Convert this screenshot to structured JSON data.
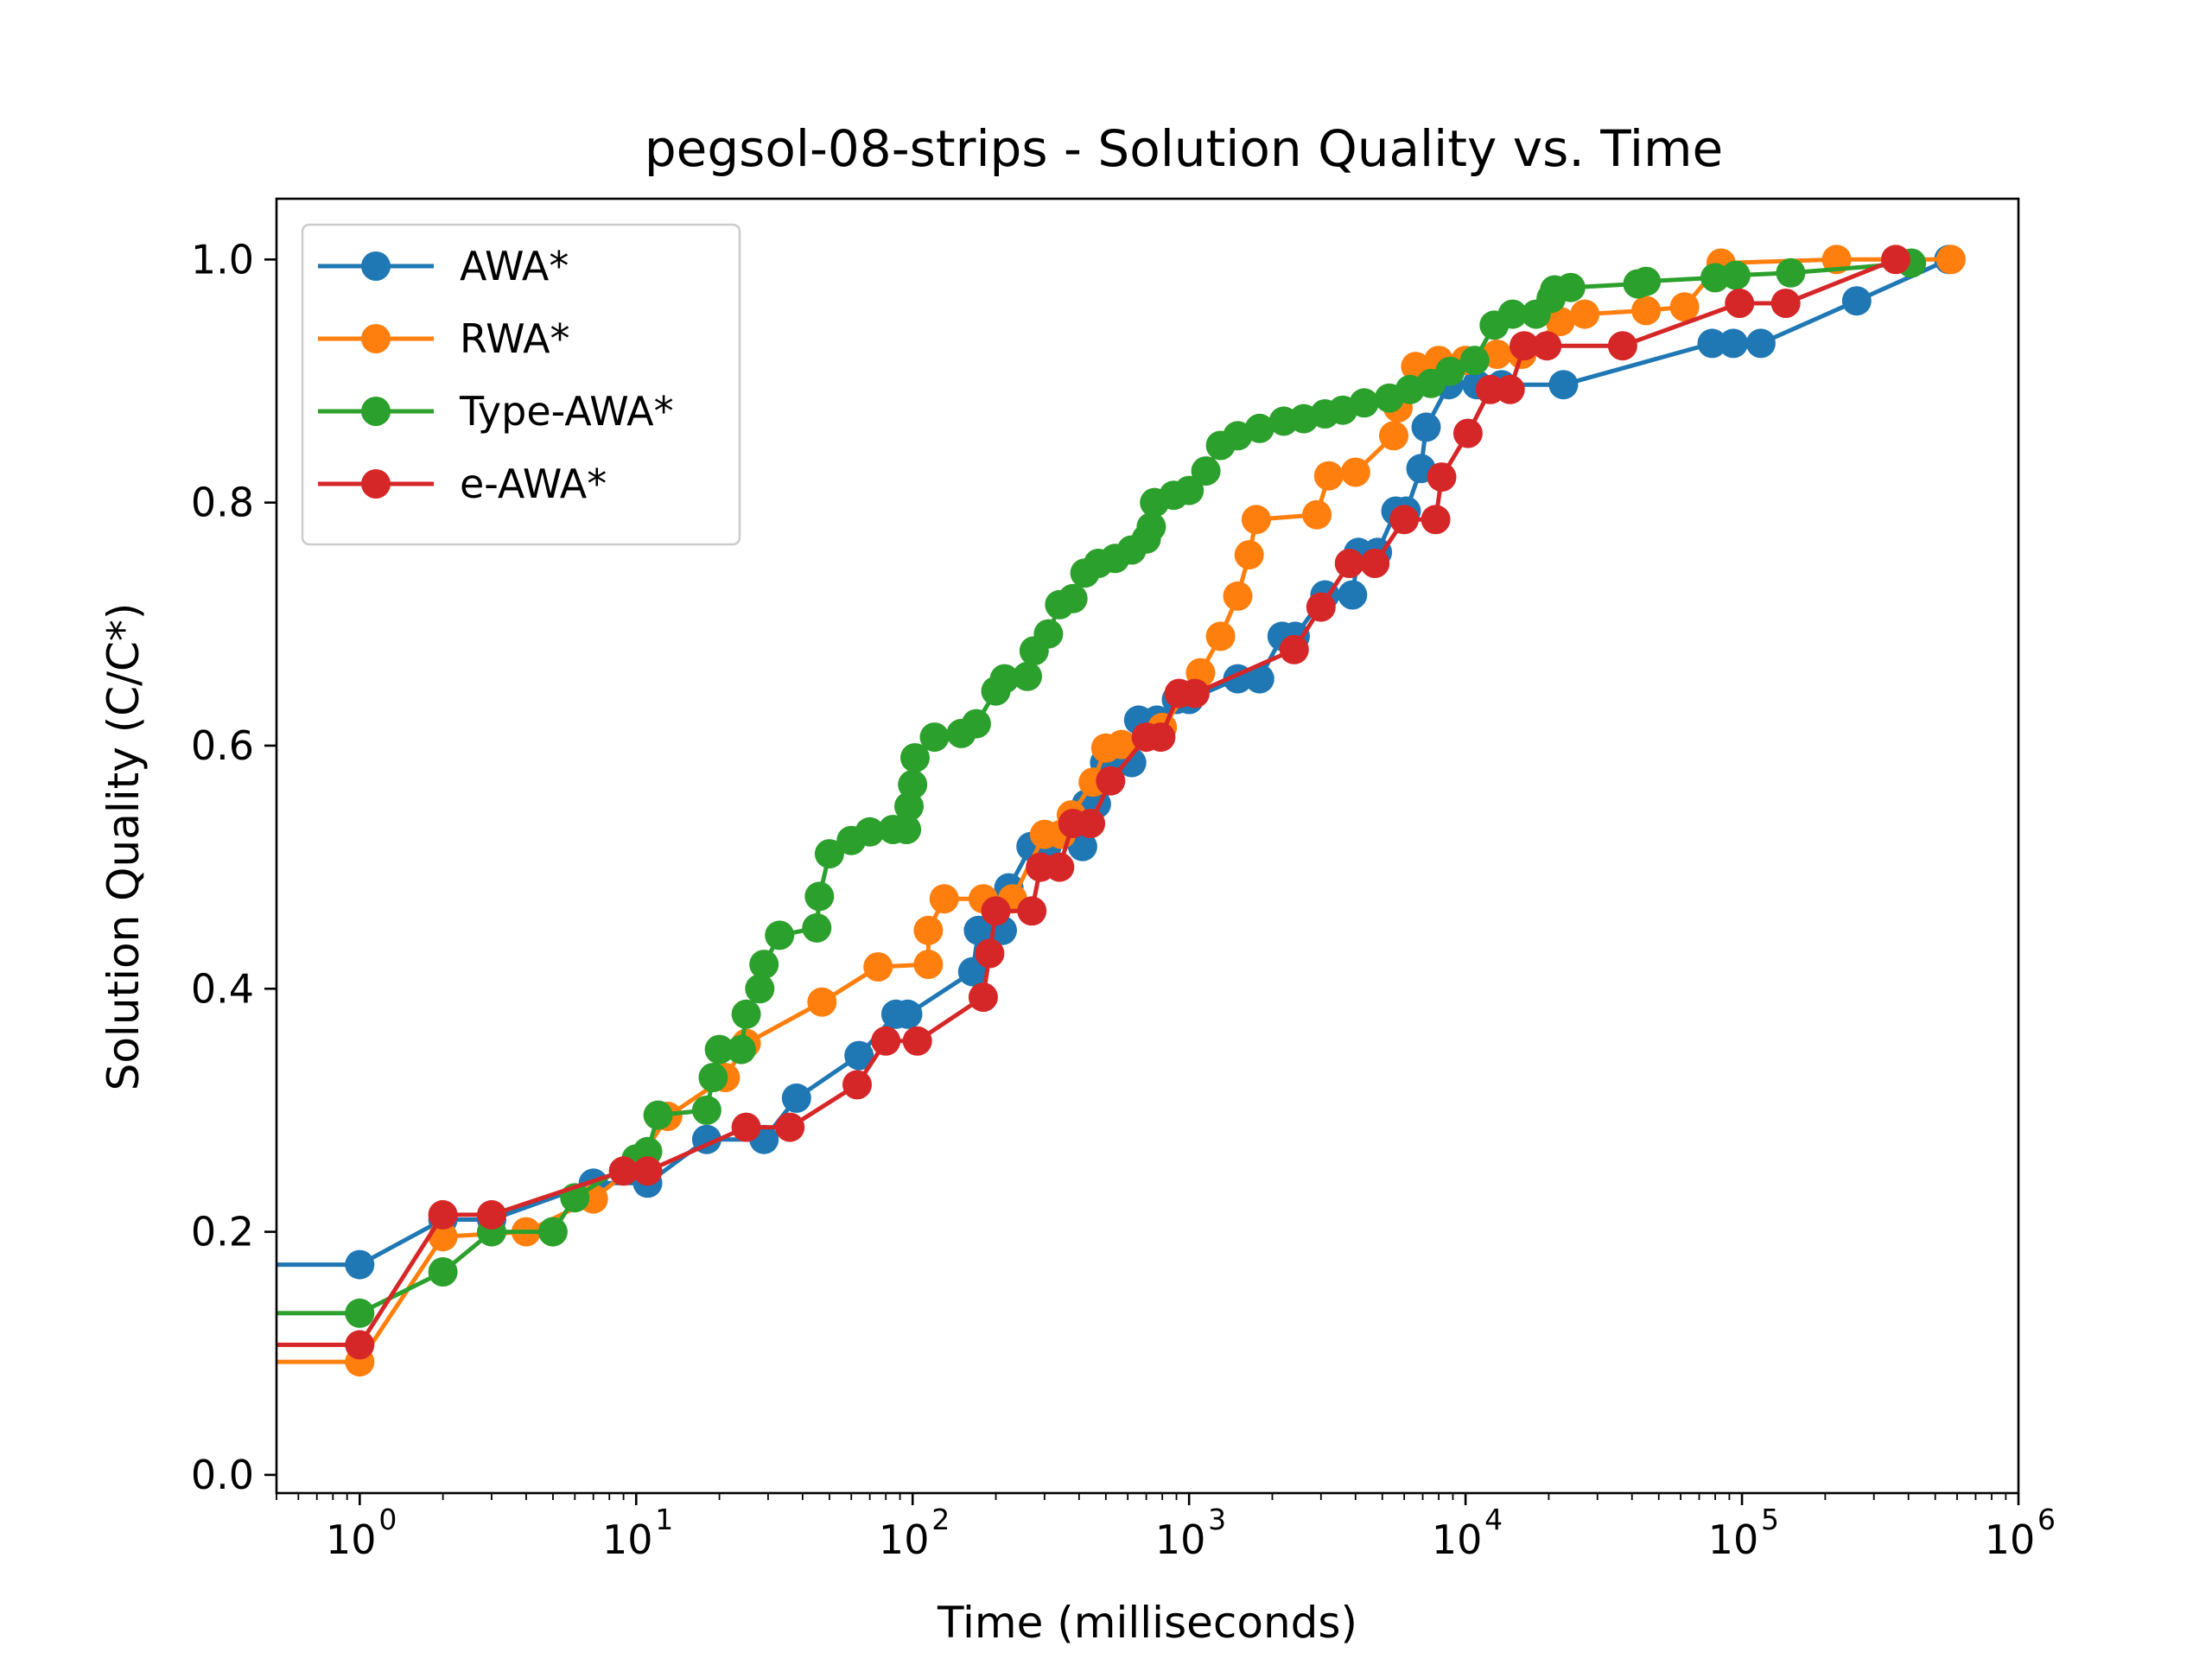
{
  "chart_data": {
    "type": "line",
    "title": "pegsol-08-strips - Solution Quality vs. Time",
    "xlabel": "Time (milliseconds)",
    "ylabel": "Solution Quality (C/C*)",
    "xscale": "log",
    "xlim": [
      0.5,
      1000000
    ],
    "ylim": [
      -0.015,
      1.05
    ],
    "x_ticks": [
      {
        "base": "10",
        "exp": "0",
        "value": 1
      },
      {
        "base": "10",
        "exp": "1",
        "value": 10
      },
      {
        "base": "10",
        "exp": "2",
        "value": 100
      },
      {
        "base": "10",
        "exp": "3",
        "value": 1000
      },
      {
        "base": "10",
        "exp": "4",
        "value": 10000
      },
      {
        "base": "10",
        "exp": "5",
        "value": 100000
      },
      {
        "base": "10",
        "exp": "6",
        "value": 1000000
      }
    ],
    "y_ticks": [
      "0.0",
      "0.2",
      "0.4",
      "0.6",
      "0.8",
      "1.0"
    ],
    "grid": false,
    "legend_position": "top-left",
    "series": [
      {
        "name": "AWA*",
        "color": "#1f77b4",
        "start_level": 0.173,
        "points": [
          [
            1,
            0.173
          ],
          [
            2,
            0.21
          ],
          [
            3,
            0.21
          ],
          [
            7,
            0.24
          ],
          [
            11,
            0.24
          ],
          [
            18,
            0.276
          ],
          [
            29,
            0.276
          ],
          [
            38,
            0.31
          ],
          [
            64,
            0.345
          ],
          [
            87,
            0.379
          ],
          [
            96,
            0.379
          ],
          [
            165,
            0.414
          ],
          [
            173,
            0.448
          ],
          [
            211,
            0.448
          ],
          [
            223,
            0.483
          ],
          [
            268,
            0.517
          ],
          [
            306,
            0.517
          ],
          [
            412,
            0.517
          ],
          [
            425,
            0.552
          ],
          [
            462,
            0.552
          ],
          [
            495,
            0.586
          ],
          [
            620,
            0.586
          ],
          [
            657,
            0.621
          ],
          [
            765,
            0.621
          ],
          [
            900,
            0.638
          ],
          [
            1000,
            0.638
          ],
          [
            1500,
            0.655
          ],
          [
            1800,
            0.655
          ],
          [
            2170,
            0.69
          ],
          [
            2420,
            0.69
          ],
          [
            3100,
            0.724
          ],
          [
            3900,
            0.724
          ],
          [
            4100,
            0.759
          ],
          [
            4800,
            0.759
          ],
          [
            5600,
            0.793
          ],
          [
            6100,
            0.793
          ],
          [
            6900,
            0.828
          ],
          [
            7200,
            0.862
          ],
          [
            8700,
            0.897
          ],
          [
            11000,
            0.897
          ],
          [
            13500,
            0.897
          ],
          [
            22600,
            0.897
          ],
          [
            78000,
            0.931
          ],
          [
            93000,
            0.931
          ],
          [
            117000,
            0.931
          ],
          [
            260000,
            0.966
          ],
          [
            560000,
            1.0
          ]
        ]
      },
      {
        "name": "RWA*",
        "color": "#ff7f0e",
        "start_level": 0.093,
        "points": [
          [
            1,
            0.093
          ],
          [
            2,
            0.196
          ],
          [
            4,
            0.2
          ],
          [
            7,
            0.227
          ],
          [
            10,
            0.255
          ],
          [
            13,
            0.295
          ],
          [
            21,
            0.327
          ],
          [
            25,
            0.355
          ],
          [
            47,
            0.389
          ],
          [
            75,
            0.418
          ],
          [
            114,
            0.42
          ],
          [
            114,
            0.448
          ],
          [
            130,
            0.474
          ],
          [
            180,
            0.474
          ],
          [
            230,
            0.474
          ],
          [
            300,
            0.527
          ],
          [
            345,
            0.527
          ],
          [
            375,
            0.543
          ],
          [
            450,
            0.57
          ],
          [
            500,
            0.598
          ],
          [
            570,
            0.601
          ],
          [
            800,
            0.615
          ],
          [
            1100,
            0.66
          ],
          [
            1300,
            0.69
          ],
          [
            1500,
            0.723
          ],
          [
            1650,
            0.757
          ],
          [
            1750,
            0.786
          ],
          [
            2900,
            0.79
          ],
          [
            3200,
            0.822
          ],
          [
            4000,
            0.825
          ],
          [
            5500,
            0.855
          ],
          [
            5700,
            0.878
          ],
          [
            6600,
            0.912
          ],
          [
            8000,
            0.917
          ],
          [
            10000,
            0.917
          ],
          [
            13000,
            0.922
          ],
          [
            16000,
            0.922
          ],
          [
            22000,
            0.949
          ],
          [
            27000,
            0.955
          ],
          [
            45000,
            0.958
          ],
          [
            62000,
            0.961
          ],
          [
            84000,
            0.997
          ],
          [
            220000,
            1.0
          ],
          [
            570000,
            1.0
          ]
        ]
      },
      {
        "name": "Type-AWA*",
        "color": "#2ca02c",
        "start_level": 0.133,
        "points": [
          [
            1,
            0.133
          ],
          [
            2,
            0.167
          ],
          [
            3,
            0.2
          ],
          [
            5,
            0.2
          ],
          [
            6,
            0.228
          ],
          [
            10,
            0.26
          ],
          [
            11,
            0.266
          ],
          [
            12,
            0.296
          ],
          [
            18,
            0.3
          ],
          [
            19,
            0.327
          ],
          [
            20,
            0.35
          ],
          [
            24,
            0.35
          ],
          [
            25,
            0.379
          ],
          [
            28,
            0.4
          ],
          [
            29,
            0.42
          ],
          [
            33,
            0.444
          ],
          [
            45,
            0.45
          ],
          [
            46,
            0.476
          ],
          [
            50,
            0.511
          ],
          [
            60,
            0.522
          ],
          [
            70,
            0.529
          ],
          [
            85,
            0.531
          ],
          [
            95,
            0.531
          ],
          [
            97,
            0.55
          ],
          [
            100,
            0.568
          ],
          [
            102,
            0.59
          ],
          [
            120,
            0.607
          ],
          [
            150,
            0.61
          ],
          [
            170,
            0.618
          ],
          [
            200,
            0.645
          ],
          [
            215,
            0.655
          ],
          [
            260,
            0.657
          ],
          [
            275,
            0.678
          ],
          [
            310,
            0.692
          ],
          [
            340,
            0.716
          ],
          [
            380,
            0.721
          ],
          [
            420,
            0.742
          ],
          [
            470,
            0.75
          ],
          [
            540,
            0.754
          ],
          [
            620,
            0.761
          ],
          [
            700,
            0.77
          ],
          [
            730,
            0.78
          ],
          [
            750,
            0.8
          ],
          [
            880,
            0.806
          ],
          [
            1000,
            0.81
          ],
          [
            1150,
            0.826
          ],
          [
            1300,
            0.847
          ],
          [
            1500,
            0.855
          ],
          [
            1800,
            0.861
          ],
          [
            2200,
            0.867
          ],
          [
            2600,
            0.869
          ],
          [
            3100,
            0.873
          ],
          [
            3600,
            0.876
          ],
          [
            4300,
            0.882
          ],
          [
            5300,
            0.886
          ],
          [
            6300,
            0.893
          ],
          [
            7500,
            0.898
          ],
          [
            8800,
            0.908
          ],
          [
            10800,
            0.917
          ],
          [
            12700,
            0.946
          ],
          [
            14800,
            0.955
          ],
          [
            18000,
            0.955
          ],
          [
            20400,
            0.968
          ],
          [
            21000,
            0.975
          ],
          [
            24000,
            0.977
          ],
          [
            42000,
            0.98
          ],
          [
            45000,
            0.982
          ],
          [
            80000,
            0.985
          ],
          [
            95000,
            0.987
          ],
          [
            150000,
            0.989
          ],
          [
            410000,
            0.997
          ]
        ]
      },
      {
        "name": "e-AWA*",
        "color": "#d62728",
        "start_level": 0.107,
        "points": [
          [
            1,
            0.107
          ],
          [
            2,
            0.214
          ],
          [
            3,
            0.214
          ],
          [
            9,
            0.25
          ],
          [
            11,
            0.25
          ],
          [
            25,
            0.286
          ],
          [
            36,
            0.286
          ],
          [
            63,
            0.321
          ],
          [
            80,
            0.357
          ],
          [
            104,
            0.357
          ],
          [
            180,
            0.393
          ],
          [
            190,
            0.429
          ],
          [
            200,
            0.464
          ],
          [
            270,
            0.464
          ],
          [
            290,
            0.5
          ],
          [
            340,
            0.5
          ],
          [
            380,
            0.536
          ],
          [
            440,
            0.536
          ],
          [
            520,
            0.571
          ],
          [
            700,
            0.607
          ],
          [
            790,
            0.607
          ],
          [
            920,
            0.643
          ],
          [
            1050,
            0.643
          ],
          [
            2400,
            0.679
          ],
          [
            3000,
            0.714
          ],
          [
            3800,
            0.75
          ],
          [
            4700,
            0.75
          ],
          [
            6000,
            0.786
          ],
          [
            7800,
            0.786
          ],
          [
            8200,
            0.821
          ],
          [
            10200,
            0.857
          ],
          [
            12300,
            0.893
          ],
          [
            14500,
            0.893
          ],
          [
            16300,
            0.929
          ],
          [
            19700,
            0.929
          ],
          [
            37000,
            0.929
          ],
          [
            98000,
            0.964
          ],
          [
            144000,
            0.964
          ],
          [
            360000,
            1.0
          ]
        ]
      }
    ]
  }
}
